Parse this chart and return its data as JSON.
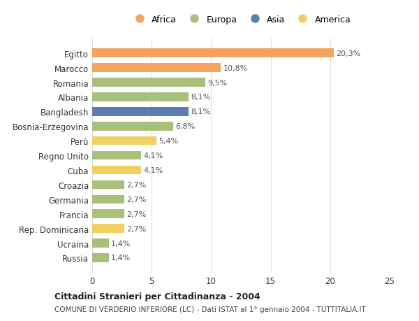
{
  "countries": [
    "Egitto",
    "Marocco",
    "Romania",
    "Albania",
    "Bangladesh",
    "Bosnia-Erzegovina",
    "Perù",
    "Regno Unito",
    "Cuba",
    "Croazia",
    "Germania",
    "Francia",
    "Rep. Dominicana",
    "Ucraina",
    "Russia"
  ],
  "values": [
    20.3,
    10.8,
    9.5,
    8.1,
    8.1,
    6.8,
    5.4,
    4.1,
    4.1,
    2.7,
    2.7,
    2.7,
    2.7,
    1.4,
    1.4
  ],
  "labels": [
    "20,3%",
    "10,8%",
    "9,5%",
    "8,1%",
    "8,1%",
    "6,8%",
    "5,4%",
    "4,1%",
    "4,1%",
    "2,7%",
    "2,7%",
    "2,7%",
    "2,7%",
    "1,4%",
    "1,4%"
  ],
  "continents": [
    "Africa",
    "Africa",
    "Europa",
    "Europa",
    "Asia",
    "Europa",
    "America",
    "Europa",
    "America",
    "Europa",
    "Europa",
    "Europa",
    "America",
    "Europa",
    "Europa"
  ],
  "colors": {
    "Africa": "#F4A460",
    "Europa": "#A8C07A",
    "Asia": "#5B7DB1",
    "America": "#F0D060"
  },
  "legend_entries": [
    "Africa",
    "Europa",
    "Asia",
    "America"
  ],
  "title": "Cittadini Stranieri per Cittadinanza - 2004",
  "subtitle": "COMUNE DI VERDERIO INFERIORE (LC) - Dati ISTAT al 1° gennaio 2004 - TUTTITALIA.IT",
  "xlim": [
    0,
    25
  ],
  "xticks": [
    0,
    5,
    10,
    15,
    20,
    25
  ],
  "background_color": "#ffffff",
  "grid_color": "#e0e0e0"
}
